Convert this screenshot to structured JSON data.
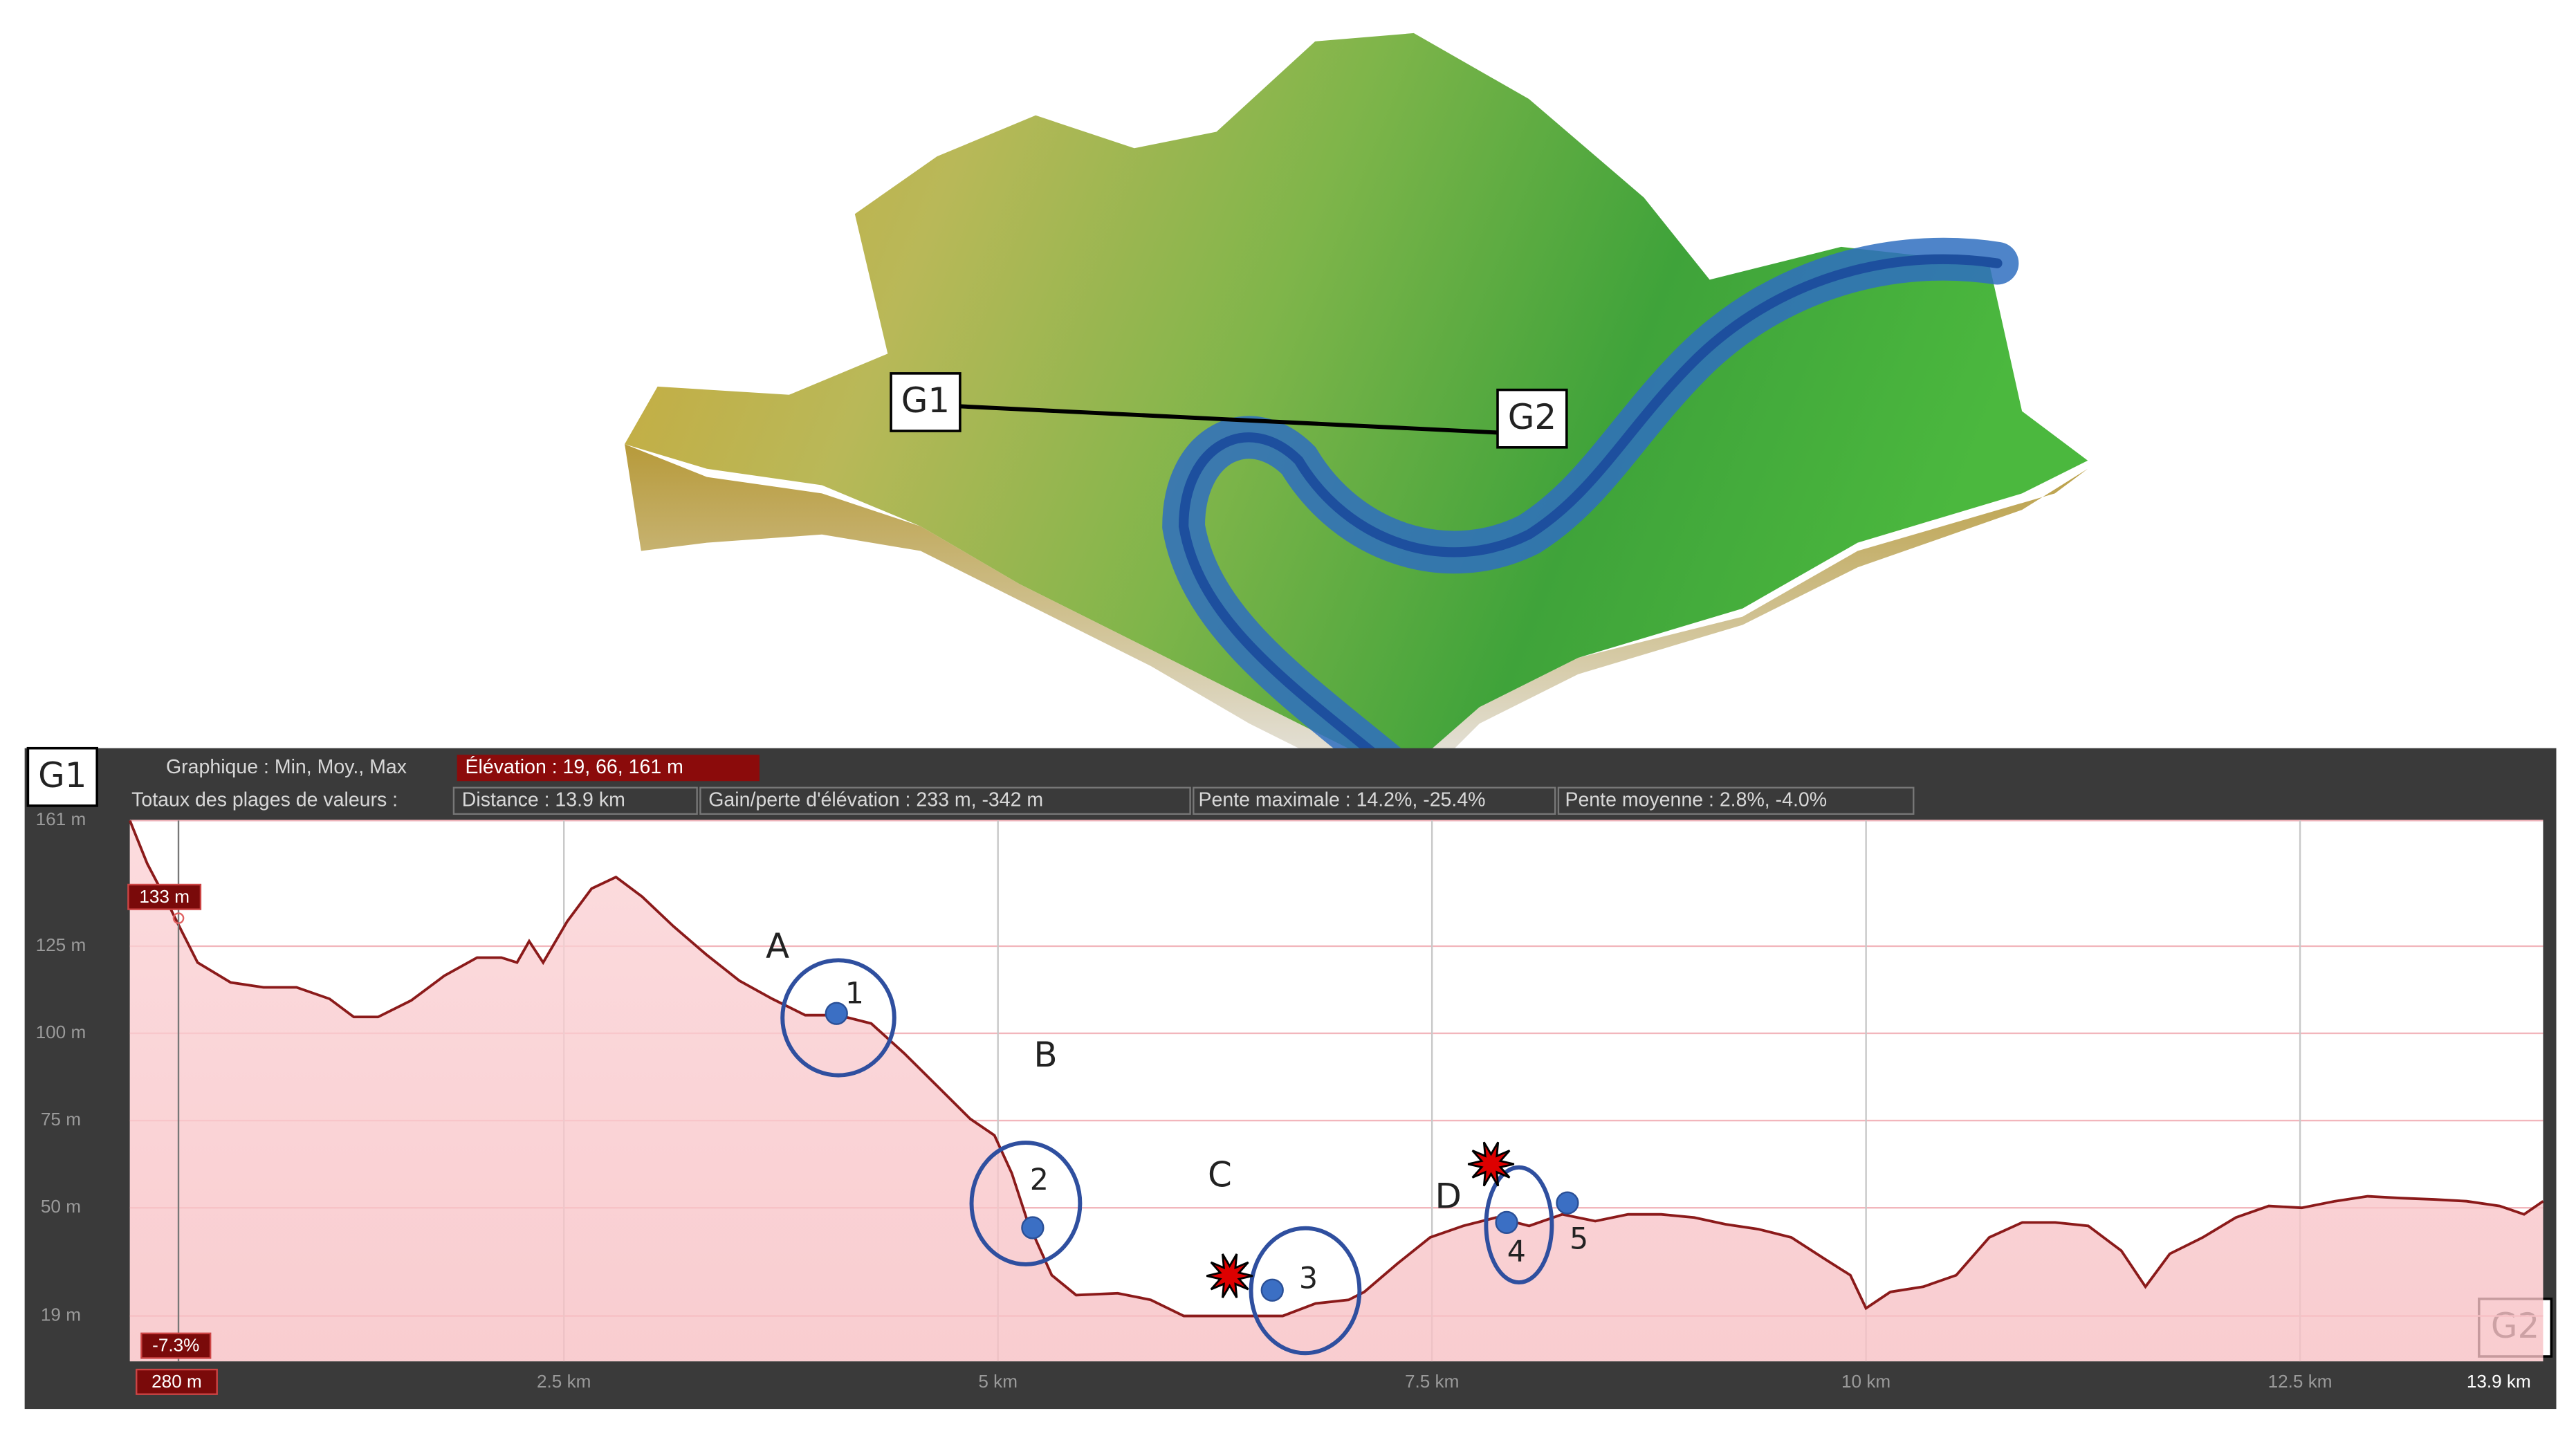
{
  "map": {
    "start_label": "G1",
    "end_label": "G2"
  },
  "chart_data": {
    "type": "line",
    "header": {
      "stats_label": "Graphique : Min, Moy., Max",
      "elevation": "Élévation : 19, 66, 161 m",
      "totals_label": "Totaux des plages de valeurs :",
      "distance": "Distance : 13.9 km",
      "gain": "Gain/perte d'élévation : 233 m, -342 m",
      "max_slope": "Pente maximale : 14.2%, -25.4%",
      "avg_slope": "Pente moyenne : 2.8%, -4.0%"
    },
    "start_label": "G1",
    "end_label": "G2",
    "x": [
      0,
      0.1,
      0.2,
      0.27,
      0.39,
      0.58,
      0.77,
      0.96,
      1.15,
      1.29,
      1.43,
      1.62,
      1.81,
      2.0,
      2.14,
      2.23,
      2.3,
      2.38,
      2.52,
      2.66,
      2.8,
      2.95,
      3.13,
      3.32,
      3.51,
      3.7,
      3.89,
      4.08,
      4.27,
      4.46,
      4.65,
      4.84,
      4.98,
      5.08,
      5.17,
      5.31,
      5.45,
      5.69,
      5.88,
      6.07,
      6.26,
      6.45,
      6.64,
      6.83,
      7.02,
      7.11,
      7.3,
      7.49,
      7.68,
      7.87,
      8.06,
      8.25,
      8.44,
      8.63,
      8.82,
      9.01,
      9.19,
      9.38,
      9.57,
      9.76,
      9.91,
      10.0,
      10.14,
      10.33,
      10.52,
      10.71,
      10.9,
      11.09,
      11.28,
      11.47,
      11.61,
      11.75,
      11.94,
      12.13,
      12.32,
      12.51,
      12.7,
      12.89,
      13.08,
      13.27,
      13.46,
      13.65,
      13.79,
      13.9
    ],
    "series": [
      {
        "color": "#8b1a1a",
        "values": [
          161,
          148.6,
          139.2,
          132.1,
          120.3,
          114.6,
          113.2,
          113.2,
          109.9,
          104.7,
          104.7,
          109.4,
          116.5,
          121.7,
          121.7,
          120.3,
          126.4,
          120.3,
          132.1,
          141.5,
          144.8,
          139.2,
          130.7,
          122.6,
          115.1,
          109.9,
          105.2,
          105.2,
          102.8,
          94.3,
          84.9,
          75.5,
          70.8,
          59.9,
          46.2,
          30.7,
          25.0,
          25.5,
          23.6,
          19.0,
          19.0,
          19.0,
          19.0,
          22.6,
          23.6,
          25.9,
          34.0,
          41.5,
          44.8,
          47.2,
          44.8,
          48.1,
          46.2,
          48.1,
          48.1,
          47.2,
          45.3,
          43.9,
          41.5,
          35.4,
          30.7,
          21.2,
          25.9,
          27.4,
          30.7,
          41.5,
          45.8,
          45.8,
          44.8,
          37.7,
          27.4,
          36.8,
          41.5,
          47.2,
          50.5,
          50.0,
          51.9,
          53.3,
          52.8,
          52.4,
          51.9,
          50.5,
          48.1,
          51.9
        ]
      }
    ],
    "xlim": [
      0,
      13.9
    ],
    "ylim": [
      6,
      161
    ],
    "xticks": [
      {
        "value": 2.5,
        "label": "2.5 km"
      },
      {
        "value": 5,
        "label": "5 km"
      },
      {
        "value": 7.5,
        "label": "7.5 km"
      },
      {
        "value": 10,
        "label": "10 km"
      },
      {
        "value": 12.5,
        "label": "12.5 km"
      },
      {
        "value": 13.9,
        "label": "13.9 km"
      }
    ],
    "yticks": [
      {
        "value": 161,
        "label": "161 m"
      },
      {
        "value": 125,
        "label": "125 m"
      },
      {
        "value": 100,
        "label": "100 m"
      },
      {
        "value": 75,
        "label": "75 m"
      },
      {
        "value": 50,
        "label": "50 m"
      },
      {
        "value": 19,
        "label": "19 m"
      }
    ],
    "grid": true,
    "cursor": {
      "x": {
        "value": 0.28,
        "label": "280 m"
      },
      "y": {
        "value": 133,
        "label": "133 m"
      },
      "slope": "-7.3%"
    },
    "markers": [
      {
        "label": "1",
        "x": 4.07,
        "y": 105.7
      },
      {
        "label": "2",
        "x": 5.2,
        "y": 44.3
      },
      {
        "label": "3",
        "x": 6.58,
        "y": 26.4
      },
      {
        "label": "4",
        "x": 7.93,
        "y": 45.8
      },
      {
        "label": "5",
        "x": 8.28,
        "y": 51.4
      }
    ],
    "annotations": [
      "A",
      "B",
      "C",
      "D"
    ]
  }
}
